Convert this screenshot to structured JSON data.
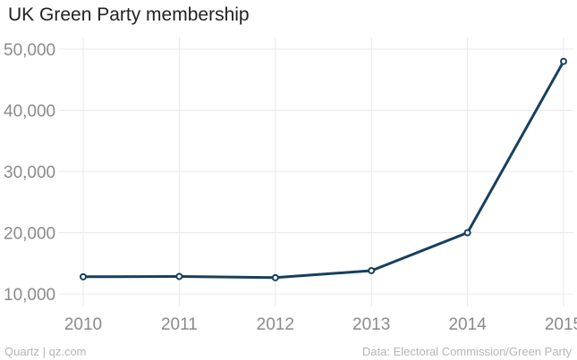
{
  "title": "UK Green Party membership",
  "footer": {
    "source_left": "Quartz | qz.com",
    "source_right": "Data: Electoral Commission/Green Party"
  },
  "colors": {
    "line": "#173f5f",
    "grid": "#e8e8e8",
    "tick_text": "#8a8a8a"
  },
  "chart_data": {
    "type": "line",
    "title": "UK Green Party membership",
    "xlabel": "",
    "ylabel": "",
    "x": [
      2010,
      2011,
      2012,
      2013,
      2014,
      2015
    ],
    "x_tick_labels": [
      "2010",
      "2011",
      "2012",
      "2013",
      "2014",
      "2015"
    ],
    "series": [
      {
        "values": [
          12800,
          12850,
          12650,
          13800,
          20000,
          48000
        ]
      }
    ],
    "y_ticks": [
      10000,
      20000,
      30000,
      40000,
      50000
    ],
    "y_tick_labels": [
      "10,000",
      "20,000",
      "30,000",
      "40,000",
      "50,000"
    ],
    "ylim": [
      10000,
      50000
    ],
    "xlim": [
      2010,
      2015
    ],
    "grid": true,
    "legend": "none"
  }
}
